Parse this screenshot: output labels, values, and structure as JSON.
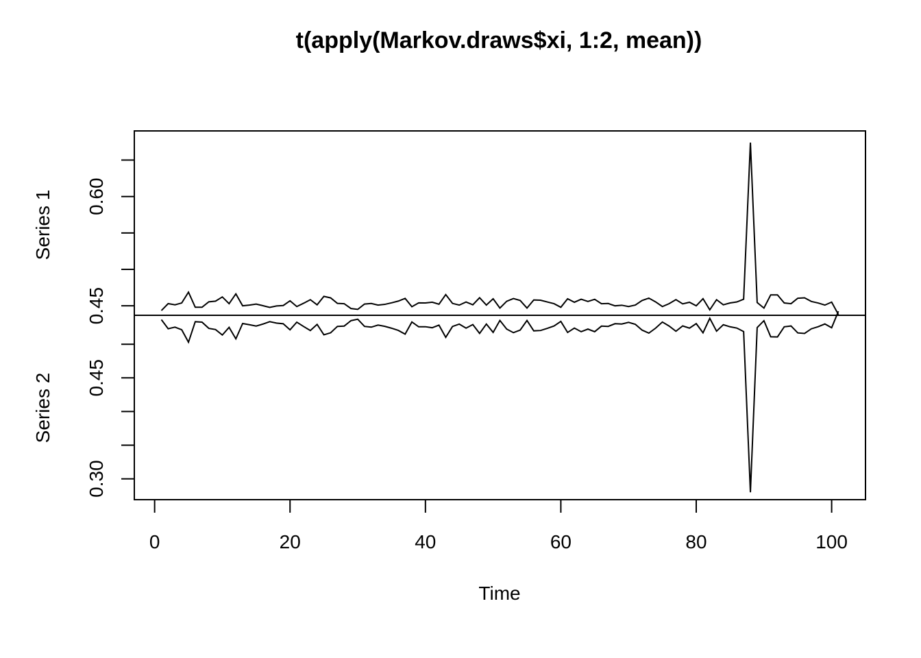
{
  "chart_data": {
    "type": "line",
    "title": "t(apply(Markov.draws$xi, 1:2, mean))",
    "xlabel": "Time",
    "xlim": [
      1,
      101
    ],
    "x_ticks": [
      "0",
      "20",
      "40",
      "60",
      "80",
      "100"
    ],
    "grid": false,
    "series": [
      {
        "name": "Series 1",
        "ylim": [
          0.437,
          0.69
        ],
        "y_ticks": [
          "0.45",
          "0.60"
        ],
        "values": [
          0.4435,
          0.453,
          0.4514,
          0.4539,
          0.4688,
          0.448,
          0.448,
          0.4555,
          0.4564,
          0.4622,
          0.4529,
          0.4664,
          0.45,
          0.451,
          0.4524,
          0.4502,
          0.4478,
          0.4498,
          0.4504,
          0.4569,
          0.449,
          0.4535,
          0.4584,
          0.4514,
          0.463,
          0.4609,
          0.4533,
          0.4529,
          0.4463,
          0.4451,
          0.4524,
          0.4532,
          0.451,
          0.452,
          0.4541,
          0.4565,
          0.4602,
          0.4488,
          0.454,
          0.4539,
          0.455,
          0.4522,
          0.4654,
          0.4533,
          0.451,
          0.4553,
          0.4514,
          0.4611,
          0.451,
          0.4597,
          0.4469,
          0.4562,
          0.46,
          0.4573,
          0.4469,
          0.458,
          0.4577,
          0.4553,
          0.4529,
          0.448,
          0.4597,
          0.4549,
          0.459,
          0.456,
          0.4589,
          0.4529,
          0.4532,
          0.45,
          0.4508,
          0.449,
          0.451,
          0.4573,
          0.4606,
          0.4554,
          0.449,
          0.453,
          0.4585,
          0.4527,
          0.4549,
          0.45,
          0.4598,
          0.4445,
          0.4584,
          0.4514,
          0.4539,
          0.4553,
          0.459,
          0.674,
          0.4545,
          0.4469,
          0.465,
          0.465,
          0.4539,
          0.4529,
          0.4604,
          0.461,
          0.456,
          0.4539,
          0.451,
          0.4551,
          0.438
        ]
      },
      {
        "name": "Series 2",
        "ylim": [
          0.269,
          0.543
        ],
        "y_ticks": [
          "0.30",
          "0.45"
        ],
        "values": [
          0.5365,
          0.523,
          0.5254,
          0.5215,
          0.503,
          0.5335,
          0.5328,
          0.5236,
          0.5218,
          0.5137,
          0.5251,
          0.508,
          0.5308,
          0.529,
          0.527,
          0.53,
          0.5335,
          0.5314,
          0.5304,
          0.5214,
          0.5328,
          0.5264,
          0.5203,
          0.5295,
          0.514,
          0.517,
          0.5265,
          0.527,
          0.535,
          0.5372,
          0.5265,
          0.5254,
          0.5285,
          0.5266,
          0.5238,
          0.5205,
          0.515,
          0.5331,
          0.5259,
          0.526,
          0.5245,
          0.5284,
          0.5103,
          0.5264,
          0.5299,
          0.5239,
          0.5292,
          0.5161,
          0.53,
          0.5176,
          0.5353,
          0.5225,
          0.5172,
          0.5211,
          0.5353,
          0.5199,
          0.5204,
          0.5236,
          0.5271,
          0.5339,
          0.5175,
          0.524,
          0.5186,
          0.5225,
          0.5186,
          0.5269,
          0.5265,
          0.5305,
          0.53,
          0.5325,
          0.5296,
          0.521,
          0.5165,
          0.5239,
          0.533,
          0.527,
          0.5193,
          0.5272,
          0.5239,
          0.5306,
          0.517,
          0.5385,
          0.5194,
          0.529,
          0.5259,
          0.524,
          0.5188,
          0.28,
          0.5248,
          0.535,
          0.511,
          0.5108,
          0.5259,
          0.5271,
          0.5168,
          0.516,
          0.5229,
          0.526,
          0.5301,
          0.5245,
          0.549
        ]
      }
    ]
  }
}
